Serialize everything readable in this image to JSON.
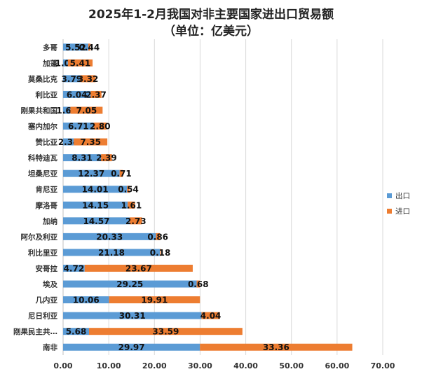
{
  "chart_data": {
    "type": "bar",
    "orientation": "horizontal",
    "stacked": true,
    "title": "2025年1-2月我国对非主要国家进出口贸易额",
    "subtitle": "（单位：亿美元）",
    "categories": [
      "多哥",
      "加蓬",
      "莫桑比克",
      "利比亚",
      "刚果共和国",
      "塞内加尔",
      "赞比亚",
      "科特迪瓦",
      "坦桑尼亚",
      "肯尼亚",
      "摩洛哥",
      "加纳",
      "阿尔及利亚",
      "利比里亚",
      "安哥拉",
      "埃及",
      "几内亚",
      "尼日利亚",
      "刚果民主共…",
      "南非"
    ],
    "series": [
      {
        "name": "出口",
        "color": "#5b9bd5",
        "values": [
          5.52,
          1.05,
          3.79,
          6.04,
          1.6,
          6.71,
          2.34,
          8.31,
          12.37,
          14.01,
          14.15,
          14.57,
          20.33,
          21.18,
          4.72,
          29.25,
          10.06,
          30.31,
          5.68,
          29.97
        ],
        "labels": [
          "5.52",
          "1.05",
          "3.79",
          "6.04",
          "1.60",
          "6.71",
          "2.34",
          "8.31",
          "12.37",
          "14.01",
          "14.15",
          "14.57",
          "20.33",
          "21.18",
          "4.72",
          "29.25",
          "10.06",
          "30.31",
          "5.68",
          "29.97"
        ]
      },
      {
        "name": "进口",
        "color": "#ed7d31",
        "values": [
          0.44,
          5.41,
          3.32,
          2.37,
          7.05,
          2.8,
          7.35,
          2.39,
          0.71,
          0.54,
          1.61,
          2.73,
          0.86,
          0.18,
          23.67,
          0.68,
          19.91,
          4.04,
          33.59,
          33.36
        ],
        "labels": [
          "0.44",
          "5.41",
          "3.32",
          "2.37",
          "7.05",
          "2.80",
          "7.35",
          "2.39",
          "0.71",
          "0.54",
          "1.61",
          "2.73",
          "0.86",
          "0.18",
          "23.67",
          "0.68",
          "19.91",
          "4.04",
          "33.59",
          "33.36"
        ]
      }
    ],
    "xlim": [
      0,
      70
    ],
    "xticks": [
      "0.00",
      "10.00",
      "20.00",
      "30.00",
      "40.00",
      "50.00",
      "60.00",
      "70.00"
    ],
    "grid": true,
    "legend": "right"
  }
}
